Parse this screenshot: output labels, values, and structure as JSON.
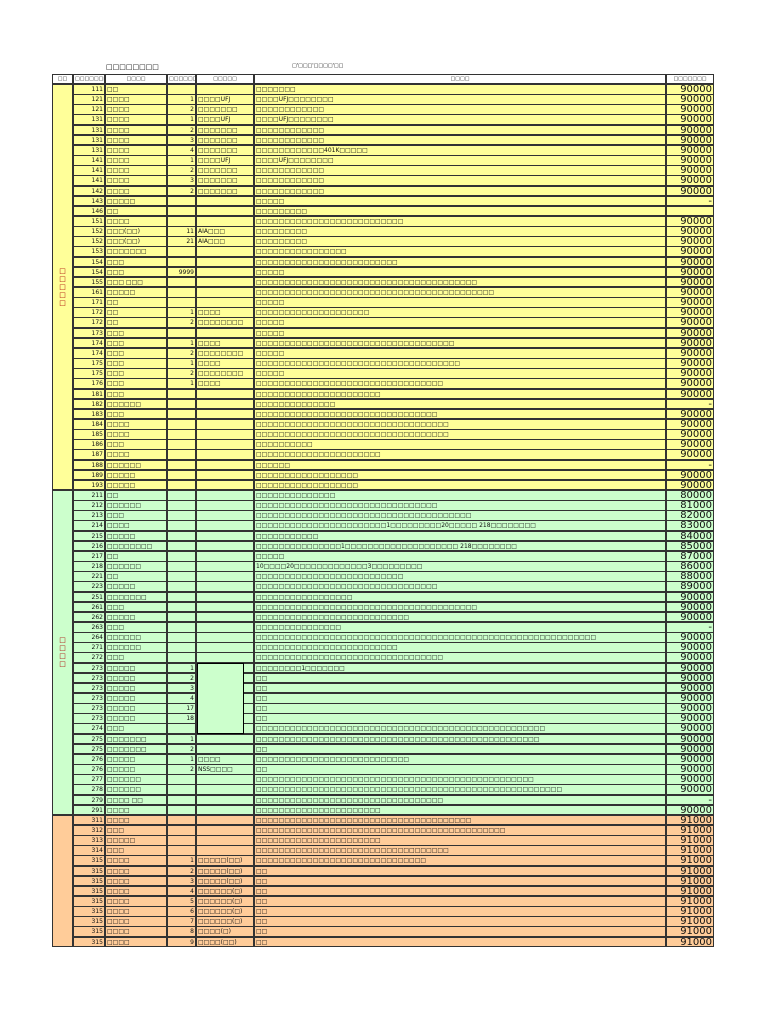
{
  "header": {
    "title": "□□□□□□□□",
    "subtitle": "□'□□□'□□□□'□□"
  },
  "table": {
    "headers": [
      "□□",
      "□□□□□□□□□",
      "□□□□",
      "□□□□□□",
      "□□□□□",
      "□□□□",
      "□□□□□□□"
    ],
    "sections": [
      {
        "label": "□□□□□",
        "color": "#ffff99",
        "rows": [
          [
            111,
            "□□",
            null,
            null,
            "□□□□□□□",
            90000
          ],
          [
            121,
            "□□□□",
            1,
            "□□□□UFJ",
            "□□□□UFJ□□□□□□□□",
            90000
          ],
          [
            121,
            "□□□□",
            2,
            "□□□□□□□",
            "□□□□□□□□□□□□",
            90000
          ],
          [
            131,
            "□□□□",
            1,
            "□□□□UFJ",
            "□□□□UFJ□□□□□□□□",
            90000
          ],
          [
            131,
            "□□□□",
            2,
            "□□□□□□□",
            "□□□□□□□□□□□□",
            90000
          ],
          [
            131,
            "□□□□",
            3,
            "□□□□□□□",
            "□□□□□□□□□□□□",
            90000
          ],
          [
            131,
            "□□□□",
            4,
            "□□□□□□□",
            "□□□□□□□□□□□□401K□□□□□",
            90000
          ],
          [
            141,
            "□□□□",
            1,
            "□□□□UFJ",
            "□□□□UFJ□□□□□□□□",
            90000
          ],
          [
            141,
            "□□□□",
            2,
            "□□□□□□□",
            "□□□□□□□□□□□□",
            90000
          ],
          [
            141,
            "□□□□",
            3,
            "□□□□□□□",
            "□□□□□□□□□□□□",
            90000
          ],
          [
            142,
            "□□□□",
            2,
            "□□□□□□□",
            "□□□□□□□□□□□□",
            90000
          ],
          [
            143,
            "□□□□□",
            null,
            null,
            "□□□□□",
            "-"
          ],
          [
            146,
            "□□",
            null,
            null,
            "□□□□□□□□□",
            null
          ],
          [
            151,
            "□□□□",
            null,
            null,
            "□□□□□□□□□□□□□□□□□□□□□□□□□□",
            90000
          ],
          [
            152,
            "□□□(□□)",
            11,
            "AIA□□□",
            "□□□□□□□□□",
            90000
          ],
          [
            152,
            "□□□(□□)",
            21,
            "AIA□□□",
            "□□□□□□□□□",
            90000
          ],
          [
            153,
            "□□□□□□□",
            null,
            null,
            "□□□□□□□□□□□□□□□□",
            90000
          ],
          [
            154,
            "□□□",
            null,
            null,
            "□□□□□□□□□□□□□□□□□□□□□□□□□",
            90000
          ],
          [
            154,
            "□□□",
            9999,
            null,
            "□□□□□",
            90000
          ],
          [
            155,
            "□□□ □□□",
            null,
            null,
            "□□□□□□□□□□□□□□□□□□□□□□□□□□□□□□□□□□□□□□□",
            90000
          ],
          [
            161,
            "□□□□□",
            null,
            null,
            "□□□□□□□□□□□□□□□□□□□□□□□□□□□□□□□□□□□□□□□□□□",
            90000
          ],
          [
            171,
            "□□",
            null,
            null,
            "□□□□□",
            90000
          ],
          [
            172,
            "□□",
            1,
            "□□□□",
            "□□□□□□□□□□□□□□□□□□□□",
            90000
          ],
          [
            172,
            "□□",
            2,
            "□□□□□□□□",
            "□□□□□",
            90000
          ],
          [
            173,
            "□□□",
            null,
            null,
            "□□□□□",
            90000
          ],
          [
            174,
            "□□□",
            1,
            "□□□□",
            "□□□□□□□□□□□□□□□□□□□□□□□□□□□□□□□□□□□",
            90000
          ],
          [
            174,
            "□□□",
            2,
            "□□□□□□□□",
            "□□□□□",
            90000
          ],
          [
            175,
            "□□□",
            1,
            "□□□□",
            "□□□□□□□□□□□□□□□□□□□□□□□□□□□□□□□□□□□□",
            90000
          ],
          [
            175,
            "□□□",
            2,
            "□□□□□□□□",
            "□□□□□",
            90000
          ],
          [
            176,
            "□□□",
            1,
            "□□□□",
            "□□□□□□□□□□□□□□□□□□□□□□□□□□□□□□□□□",
            90000
          ],
          [
            181,
            "□□□",
            null,
            null,
            "□□□□□□□□□□□□□□□□□□□□□□",
            90000
          ],
          [
            182,
            "□□□□□□",
            null,
            null,
            "□□□□□□□□□□□□□□",
            "-"
          ],
          [
            183,
            "□□□",
            null,
            null,
            "□□□□□□□□□□□□□□□□□□□□□□□□□□□□□□□□",
            90000
          ],
          [
            184,
            "□□□□",
            null,
            null,
            "□□□□□□□□□□□□□□□□□□□□□□□□□□□□□□□□□□",
            90000
          ],
          [
            185,
            "□□□□",
            null,
            null,
            "□□□□□□□□□□□□□□□□□□□□□□□□□□□□□□□□□□",
            90000
          ],
          [
            186,
            "□□□",
            null,
            null,
            "□□□□□□□□□□",
            90000
          ],
          [
            187,
            "□□□□",
            null,
            null,
            "□□□□□□□□□□□□□□□□□□□□□□",
            90000
          ],
          [
            188,
            "□□□□□□",
            null,
            null,
            "□□□□□□",
            "-"
          ],
          [
            189,
            "□□□□□",
            null,
            null,
            "□□□□□□□□□□□□□□□□□□",
            90000
          ],
          [
            193,
            "□□□□□",
            null,
            null,
            "□□□□□□□□□□□□□□□□□□",
            90000
          ]
        ]
      },
      {
        "label": "□□□□",
        "color": "#ccffcc",
        "rows": [
          [
            211,
            "□□",
            null,
            null,
            "□□□□□□□□□□□□□□",
            80000
          ],
          [
            212,
            "□□□□□□",
            null,
            null,
            "□□□□□□□□□□□□□□□□□□□□□□□□□□□□□□□□",
            81000
          ],
          [
            213,
            "□□□",
            null,
            null,
            "□□□□□□□□□□□□□□□□□□□□□□□□□□□□□□□□□□□□□□",
            82000
          ],
          [
            214,
            "□□□□",
            null,
            null,
            "□□□□□□□□□□□□□□□□□□□□□□□1□□□□□□□□□20□□□□□ 218□□□□□□□□",
            83000
          ],
          [
            215,
            "□□□□□",
            null,
            null,
            "□□□□□□□□□□□",
            84000
          ],
          [
            216,
            "□□□□□□□□",
            null,
            null,
            "□□□□□□□□□□□□□□□1□□□□□□□□□□□□□□□□□□□□ 218□□□□□□□□",
            85000
          ],
          [
            217,
            "□□",
            null,
            null,
            "□□□□□",
            87000
          ],
          [
            218,
            "□□□□□□",
            null,
            null,
            "10□□□□20□□□□□□□□□□□□□3□□□□□□□□□",
            86000
          ],
          [
            221,
            "□□",
            null,
            null,
            "□□□□□□□□□□□□□□□□□□□□□□□□□□",
            88000
          ],
          [
            223,
            "□□□□□",
            null,
            null,
            "□□□□□□□□□□□□□□□□□□□□□□□□□□□□□□□□",
            89000
          ],
          [
            251,
            "□□□□□□□",
            null,
            null,
            "□□□□□□□□□□□□□□□□□",
            90000
          ],
          [
            261,
            "□□□",
            null,
            null,
            "□□□□□□□□□□□□□□□□□□□□□□□□□□□□□□□□□□□□□□□",
            90000
          ],
          [
            262,
            "□□□□□",
            null,
            null,
            "□□□□□□□□□□□□□□□□□□□□□□□□□□□",
            90000
          ],
          [
            263,
            "□□□",
            null,
            null,
            "□□□□□□□□□□□□□□□",
            "-"
          ],
          [
            264,
            "□□□□□□",
            null,
            null,
            "□□□□□□□□□□□□□□□□□□□□□□□□□□□□□□□□□□□□□□□□□□□□□□□□□□□□□□□□□□□□",
            90000
          ],
          [
            271,
            "□□□□□□",
            null,
            null,
            "□□□□□□□□□□□□□□□□□□□□□□□□□",
            90000
          ],
          [
            272,
            "□□□",
            null,
            null,
            "□□□□□□□□□□□□□□□□□□□□□□□□□□□□□□□□□",
            90000
          ],
          [
            273,
            "□□□□□",
            1,
            null,
            "□□□□□□□□1□□□□□□□",
            90000
          ],
          [
            273,
            "□□□□□",
            2,
            null,
            "□□",
            90000
          ],
          [
            273,
            "□□□□□",
            3,
            null,
            "□□",
            90000
          ],
          [
            273,
            "□□□□□",
            4,
            null,
            "□□",
            90000
          ],
          [
            273,
            "□□□□□",
            17,
            null,
            "□□",
            90000
          ],
          [
            273,
            "□□□□□",
            18,
            null,
            "□□",
            90000
          ],
          [
            274,
            "□□□",
            null,
            null,
            "□□□□□□□□□□□□□□□□□□□□□□□□□□□□□□□□□□□□□□□□□□□□□□□□□□□",
            90000
          ],
          [
            275,
            "□□□□□□□",
            1,
            null,
            "□□□□□□□□□□□□□□□□□□□□□□□□□□□□□□□□□□□□□□□□□□□□□□□□□□",
            90000
          ],
          [
            275,
            "□□□□□□□",
            2,
            null,
            "□□",
            90000
          ],
          [
            276,
            "□□□□□",
            1,
            "□□□□",
            "□□□□□□□□□□□□□□□□□□□□□□□□□□□",
            90000
          ],
          [
            276,
            "□□□□□",
            2,
            "NSS□□□□",
            "□□",
            90000
          ],
          [
            277,
            "□□□□□□",
            null,
            null,
            "□□□□□□□□□□□□□□□□□□□□□□□□□□□□□□□□□□□□□□□□□□□□□□□□□",
            90000
          ],
          [
            278,
            "□□□□□□",
            null,
            null,
            "□□□□□□□□□□□□□□□□□□□□□□□□□□□□□□□□□□□□□□□□□□□□□□□□□□□□□□",
            90000
          ],
          [
            279,
            "□□□□ □□",
            null,
            null,
            "□□□□□□□□□□□□□□□□□□□□□□□□□□□□□□□□□",
            "-"
          ],
          [
            291,
            "□□□□",
            null,
            null,
            "□□□□□□□□□□□□□□□□□□□□□□",
            90000
          ]
        ]
      },
      {
        "label": null,
        "color": "#ffcc99",
        "rows": [
          [
            311,
            "□□□□",
            null,
            null,
            "□□□□□□□□□□□□□□□□□□□□□□□□□□□□□□□□□□□□□□",
            91000
          ],
          [
            312,
            "□□□",
            null,
            null,
            "□□□□□□□□□□□□□□□□□□□□□□□□□□□□□□□□□□□□□□□□□□□□",
            91000
          ],
          [
            313,
            "□□□□□",
            null,
            null,
            "□□□□□□□□□□□□□□□□□□□□□□",
            91000
          ],
          [
            314,
            "□□□",
            null,
            null,
            "□□□□□□□□□□□□□□□□□□□□□□□□□□□□□□□□□□",
            91000
          ],
          [
            315,
            "□□□□",
            1,
            "□□□□□(□□)",
            "□□□□□□□□□□□□□□□□□□□□□□□□□□□□□□",
            91000
          ],
          [
            315,
            "□□□□",
            2,
            "□□□□□(□□)",
            "□□",
            91000
          ],
          [
            315,
            "□□□□",
            3,
            "□□□□□(□□)",
            "□□",
            91000
          ],
          [
            315,
            "□□□□",
            4,
            "□□□□□□(□)",
            "□□",
            91000
          ],
          [
            315,
            "□□□□",
            5,
            "□□□□□□(□)",
            "□□",
            91000
          ],
          [
            315,
            "□□□□",
            6,
            "□□□□□□(□)",
            "□□",
            91000
          ],
          [
            315,
            "□□□□",
            7,
            "□□□□□□(□)",
            "□□",
            91000
          ],
          [
            315,
            "□□□□",
            8,
            "□□□□(□)",
            "□□",
            91000
          ],
          [
            315,
            "□□□□",
            9,
            "□□□□(□□)",
            "□□",
            91000
          ]
        ]
      }
    ]
  }
}
